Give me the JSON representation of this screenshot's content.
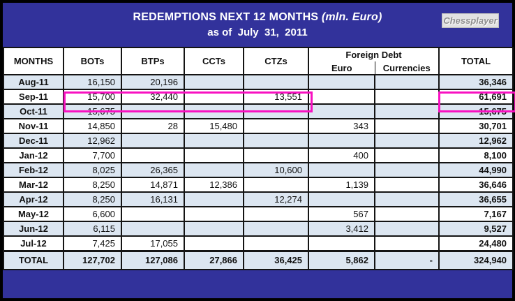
{
  "header": {
    "title_main": "REDEMPTIONS NEXT 12 MONTHS ",
    "title_unit": "(mln. Euro)",
    "subtitle": "as of  July  31,  2011",
    "watermark": "Chessplayer"
  },
  "colors": {
    "banner_bg": "#32329B",
    "stripe_bg": "#DCE6F1",
    "highlight_box": "#F811C1",
    "grid_border": "#141414",
    "title_text": "#FFFFFF"
  },
  "chart_data": {
    "type": "table",
    "title": "REDEMPTIONS NEXT 12 MONTHS (mln. Euro)",
    "subtitle": "as of July 31, 2011",
    "columns": [
      "MONTHS",
      "BOTs",
      "BTPs",
      "CCTs",
      "CTZs",
      "Euro",
      "Currencies",
      "TOTAL"
    ],
    "column_groups": [
      {
        "label": "Foreign Debt",
        "spans": [
          "Euro",
          "Currencies"
        ]
      }
    ],
    "rows": [
      [
        "Aug-11",
        "16,150",
        "20,196",
        "",
        "",
        "",
        "",
        "36,346"
      ],
      [
        "Sep-11",
        "15,700",
        "32,440",
        "",
        "13,551",
        "",
        "",
        "61,691"
      ],
      [
        "Oct-11",
        "15,675",
        "",
        "",
        "",
        "",
        "",
        "15,675"
      ],
      [
        "Nov-11",
        "14,850",
        "28",
        "15,480",
        "",
        "343",
        "",
        "30,701"
      ],
      [
        "Dec-11",
        "12,962",
        "",
        "",
        "",
        "",
        "",
        "12,962"
      ],
      [
        "Jan-12",
        "7,700",
        "",
        "",
        "",
        "400",
        "",
        "8,100"
      ],
      [
        "Feb-12",
        "8,025",
        "26,365",
        "",
        "10,600",
        "",
        "",
        "44,990"
      ],
      [
        "Mar-12",
        "8,250",
        "14,871",
        "12,386",
        "",
        "1,139",
        "",
        "36,646"
      ],
      [
        "Apr-12",
        "8,250",
        "16,131",
        "",
        "12,274",
        "",
        "",
        "36,655"
      ],
      [
        "May-12",
        "6,600",
        "",
        "",
        "",
        "567",
        "",
        "7,167"
      ],
      [
        "Jun-12",
        "6,115",
        "",
        "",
        "",
        "3,412",
        "",
        "9,527"
      ],
      [
        "Jul-12",
        "7,425",
        "17,055",
        "",
        "",
        "",
        "",
        "24,480"
      ]
    ],
    "total_row": [
      "TOTAL",
      "127,702",
      "127,086",
      "27,866",
      "36,425",
      "5,862",
      "-",
      "324,940"
    ],
    "highlighted_row": "Sep-11",
    "highlighted_cells": [
      "BOTs",
      "BTPs",
      "CCTs",
      "CTZs",
      "TOTAL"
    ]
  }
}
